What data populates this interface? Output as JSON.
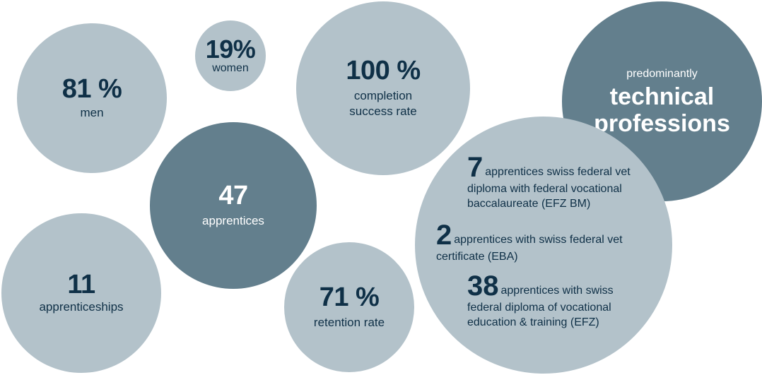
{
  "colors": {
    "light_bubble": "#b3c2ca",
    "dark_bubble": "#637f8d",
    "navy_text": "#0f3047",
    "white_text": "#ffffff"
  },
  "bubbles": {
    "men": {
      "value": "81 %",
      "label": "men"
    },
    "women": {
      "value": "19%",
      "label": "women"
    },
    "completion": {
      "value": "100 %",
      "label_line1": "completion",
      "label_line2": "success rate"
    },
    "technical": {
      "prefix": "predominantly",
      "line1": "technical",
      "line2": "professions"
    },
    "apprentices": {
      "value": "47",
      "label": "apprentices"
    },
    "apprenticeships": {
      "value": "11",
      "label": "apprenticeships"
    },
    "retention": {
      "value": "71 %",
      "label": "retention rate"
    },
    "diplomas": [
      {
        "number": "7",
        "text": "apprentices swiss federal vet diploma with federal vocational baccalaureate (EFZ BM)"
      },
      {
        "number": "2",
        "text": "apprentices with swiss federal vet certificate (EBA)"
      },
      {
        "number": "38",
        "text": "apprentices with swiss federal diploma of vocational education & training (EFZ)"
      }
    ]
  }
}
